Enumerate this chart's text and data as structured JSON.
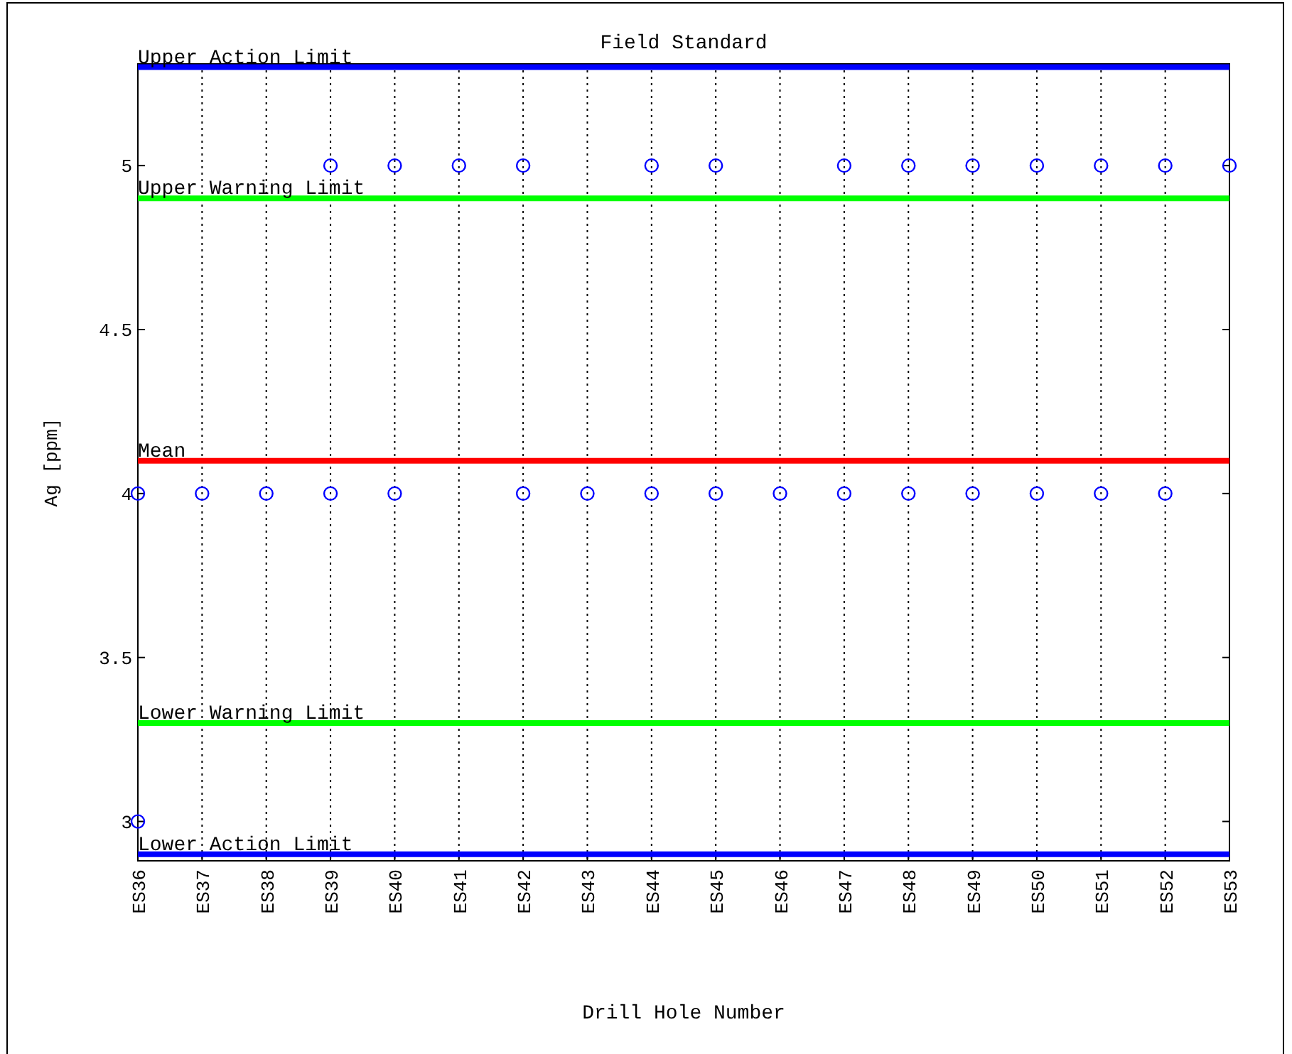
{
  "chart_data": {
    "type": "scatter",
    "title": "Field Standard",
    "xlabel": "Drill Hole Number",
    "ylabel": "Ag [ppm]",
    "categories": [
      "ES36",
      "ES37",
      "ES38",
      "ES39",
      "ES40",
      "ES41",
      "ES42",
      "ES43",
      "ES44",
      "ES45",
      "ES46",
      "ES47",
      "ES48",
      "ES49",
      "ES50",
      "ES51",
      "ES52",
      "ES53"
    ],
    "series": [
      {
        "color": "#0000ff",
        "x": [
          "ES39",
          "ES40",
          "ES41",
          "ES42",
          "ES44",
          "ES45",
          "ES47",
          "ES48",
          "ES49",
          "ES50",
          "ES51",
          "ES52",
          "ES53",
          "ES36",
          "ES37",
          "ES38",
          "ES39",
          "ES40",
          "ES42",
          "ES43",
          "ES44",
          "ES45",
          "ES46",
          "ES47",
          "ES48",
          "ES49",
          "ES50",
          "ES51",
          "ES52",
          "ES36"
        ],
        "values": [
          5,
          5,
          5,
          5,
          5,
          5,
          5,
          5,
          5,
          5,
          5,
          5,
          5,
          4,
          4,
          4,
          4,
          4,
          4,
          4,
          4,
          4,
          4,
          4,
          4,
          4,
          4,
          4,
          4,
          3
        ]
      }
    ],
    "ylim": [
      2.88,
      5.31
    ],
    "yticks": [
      3,
      3.5,
      4,
      4.5,
      5
    ],
    "grid": "x",
    "marker": "circle",
    "ref_lines": [
      {
        "axis": "y",
        "value": 5.3,
        "label": "Upper Action Limit",
        "color": "#0000ff"
      },
      {
        "axis": "y",
        "value": 4.9,
        "label": "Upper Warning Limit",
        "color": "#00ff00"
      },
      {
        "axis": "y",
        "value": 4.1,
        "label": "Mean",
        "color": "#ff0000"
      },
      {
        "axis": "y",
        "value": 3.3,
        "label": "Lower Warning Limit",
        "color": "#00ff00"
      },
      {
        "axis": "y",
        "value": 2.9,
        "label": "Lower Action Limit",
        "color": "#0000ff"
      }
    ]
  }
}
